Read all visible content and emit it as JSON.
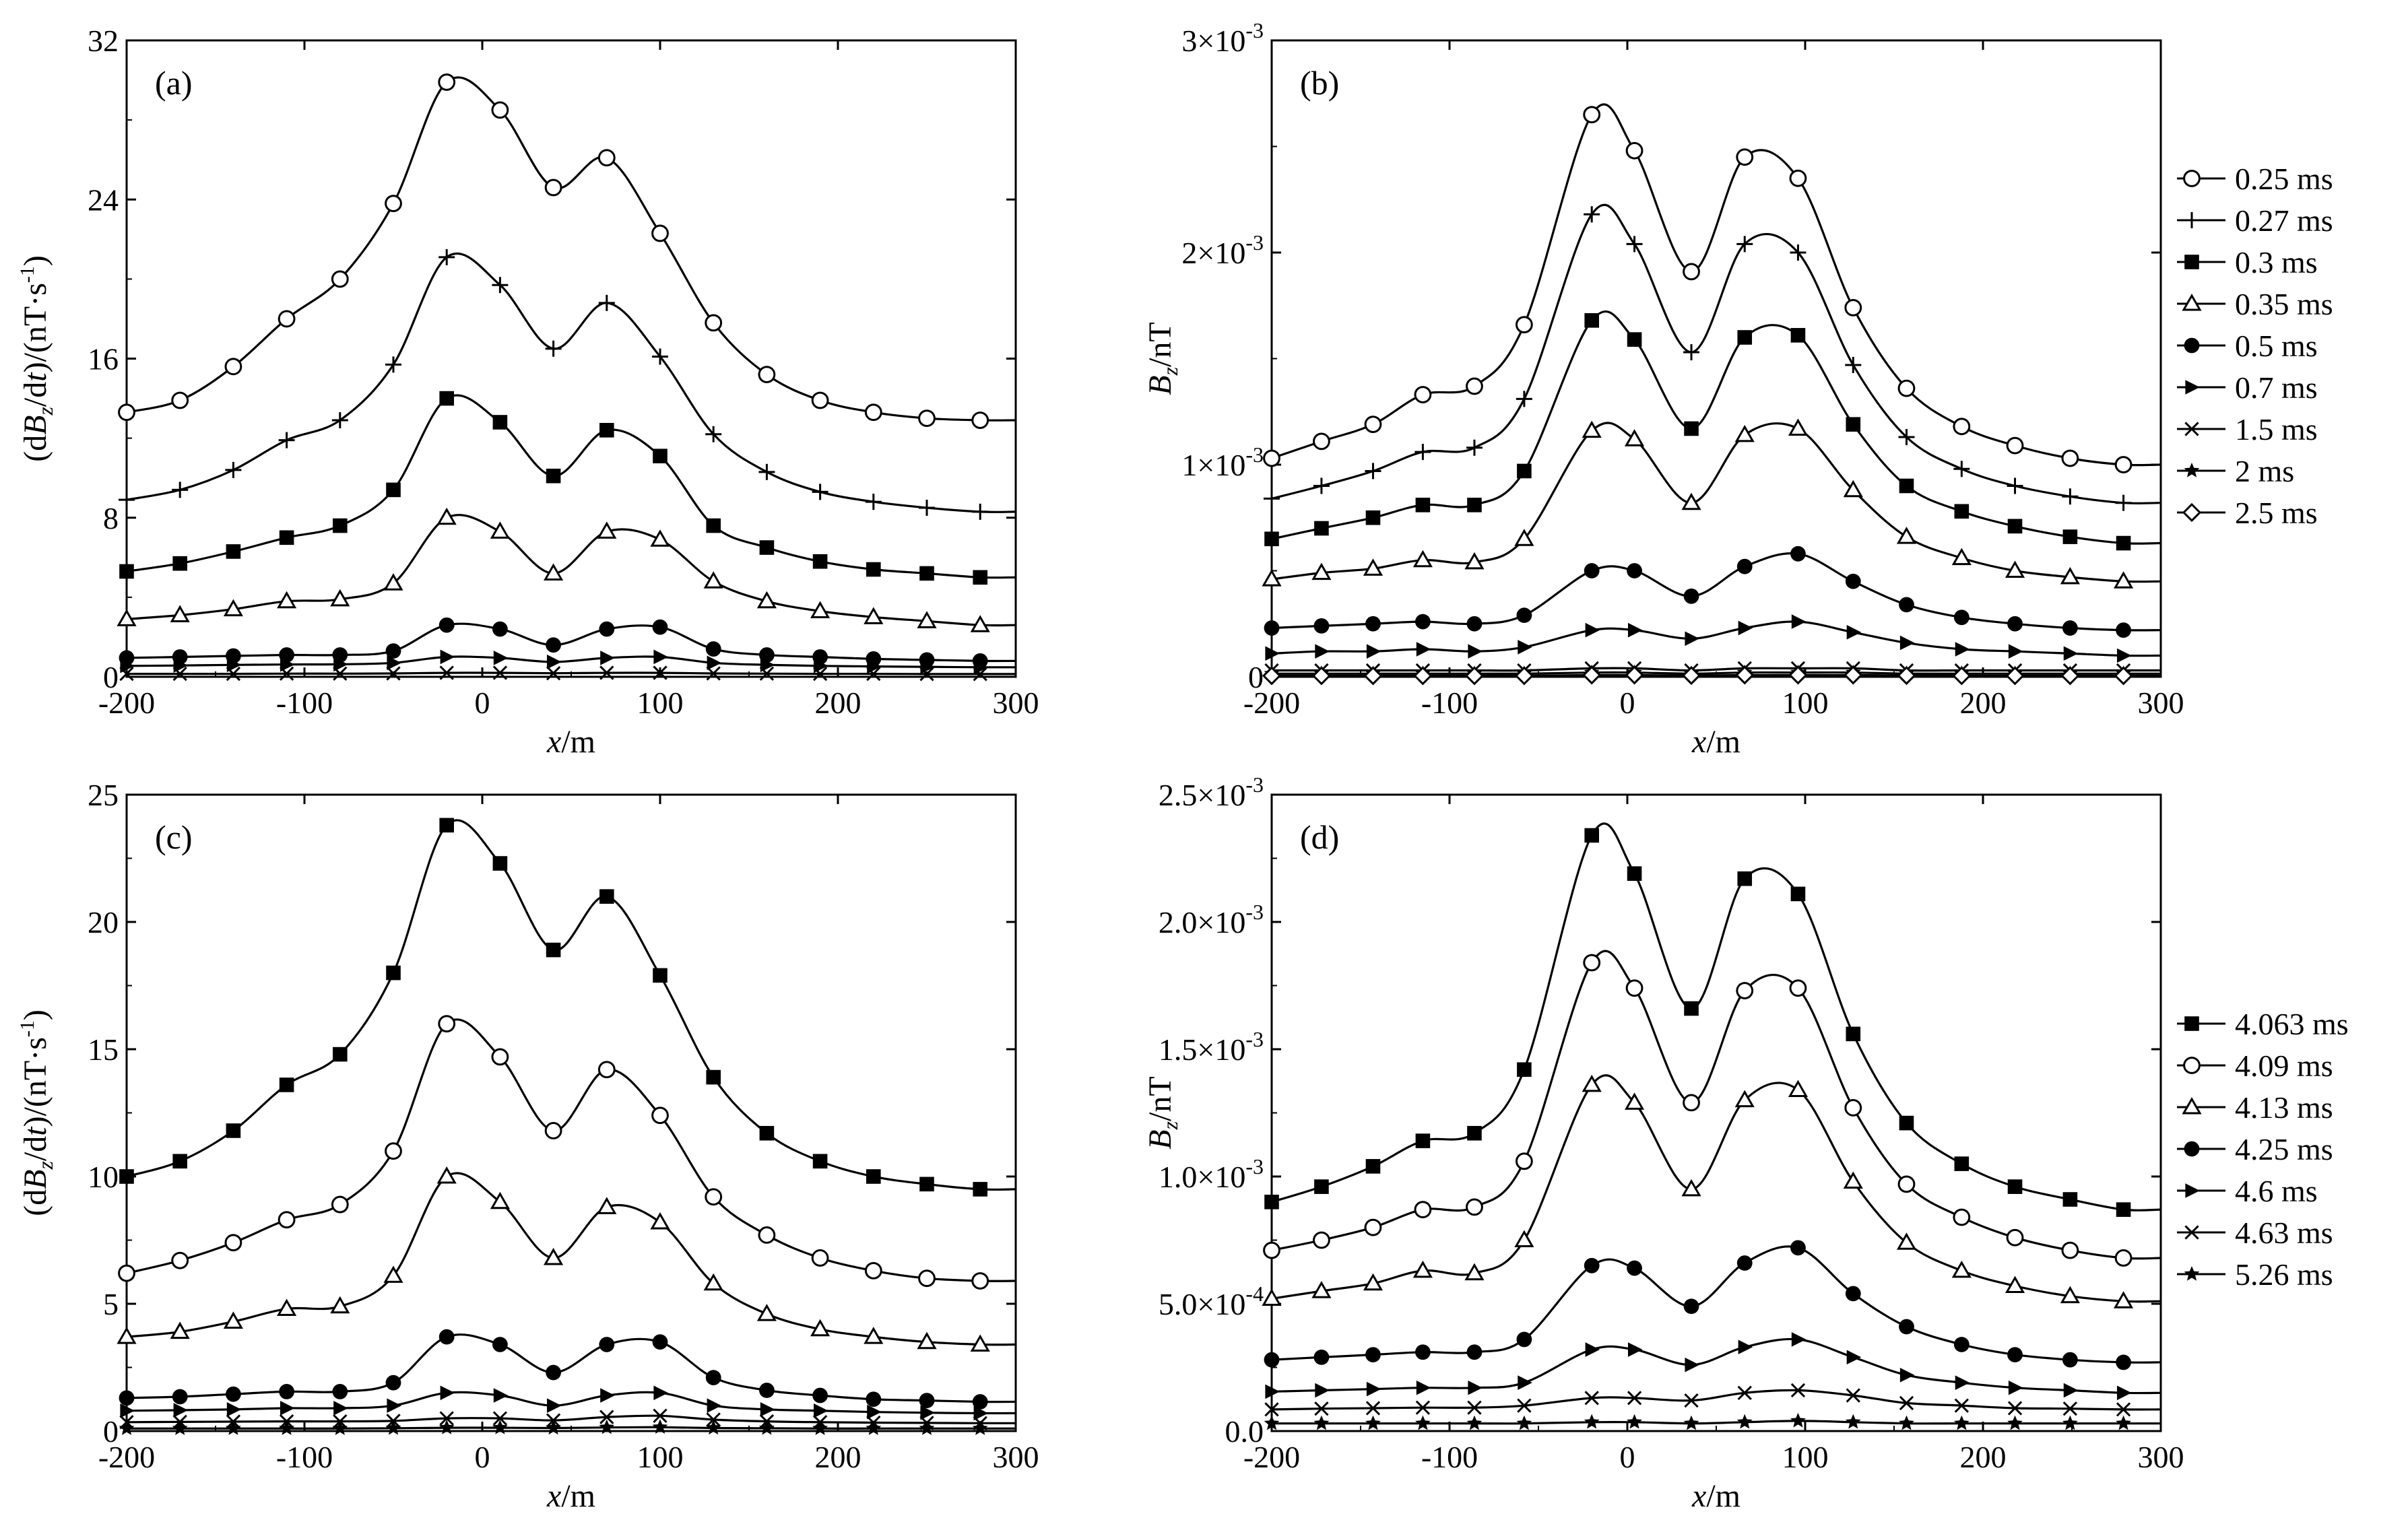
{
  "figure": {
    "panels": [
      {
        "id": "a",
        "label": "(a)",
        "ylabel_html": "(d<tspan font-style='italic'>B</tspan><tspan font-size='32' dy='10'>z</tspan><tspan dy='-10'>/d</tspan><tspan font-style='italic'>t</tspan>)/(nT·s<tspan font-size='30' dy='-18'>-1</tspan><tspan dy='18'>)</tspan>",
        "ylabel_text": "(dBz/dt)/(nT·s-1)",
        "xlabel": "x/m"
      },
      {
        "id": "b",
        "label": "(b)",
        "ylabel_text": "Bz/nT",
        "xlabel": "x/m"
      },
      {
        "id": "c",
        "label": "(c)",
        "ylabel_text": "(dBz/dt)/(nT·s-1)",
        "xlabel": "x/m"
      },
      {
        "id": "d",
        "label": "(d)",
        "ylabel_text": "Bz/nT",
        "xlabel": "x/m"
      }
    ]
  },
  "chart_data": [
    {
      "panel": "(a)",
      "type": "line",
      "xlabel": "x/m",
      "ylabel": "(dBz/dt)/(nT·s-1)",
      "xlim": [
        -200,
        300
      ],
      "ylim": [
        0,
        32
      ],
      "xticks": [
        "-200",
        "-100",
        "0",
        "100",
        "200",
        "300"
      ],
      "yticks": [
        {
          "v": 0,
          "t": "0"
        },
        {
          "v": 8,
          "t": "8"
        },
        {
          "v": 16,
          "t": "16"
        },
        {
          "v": 24,
          "t": "24"
        },
        {
          "v": 32,
          "t": "32"
        }
      ],
      "x": [
        -200,
        -170,
        -140,
        -110,
        -80,
        -50,
        -20,
        10,
        40,
        70,
        100,
        130,
        160,
        190,
        220,
        250,
        280
      ],
      "series": [
        {
          "name": "0.25 ms",
          "marker": "circle-open",
          "values": [
            13.3,
            13.9,
            15.6,
            18.0,
            20.0,
            23.8,
            29.9,
            28.5,
            24.6,
            26.1,
            22.3,
            17.8,
            15.2,
            13.9,
            13.3,
            13.0,
            12.9
          ]
        },
        {
          "name": "0.27 ms",
          "marker": "plus",
          "values": [
            8.9,
            9.4,
            10.4,
            11.9,
            12.9,
            15.7,
            21.1,
            19.7,
            16.5,
            18.8,
            16.1,
            12.2,
            10.3,
            9.3,
            8.8,
            8.5,
            8.3
          ]
        },
        {
          "name": "0.3 ms",
          "marker": "square-filled",
          "values": [
            5.3,
            5.7,
            6.3,
            7.0,
            7.6,
            9.4,
            14.0,
            12.8,
            10.1,
            12.4,
            11.1,
            7.6,
            6.5,
            5.8,
            5.4,
            5.2,
            5.0
          ]
        },
        {
          "name": "0.35 ms",
          "marker": "triangle-open",
          "values": [
            2.9,
            3.1,
            3.4,
            3.8,
            3.9,
            4.7,
            8.0,
            7.3,
            5.2,
            7.3,
            6.9,
            4.8,
            3.8,
            3.3,
            3.0,
            2.8,
            2.6
          ]
        },
        {
          "name": "0.5 ms",
          "marker": "circle-filled",
          "values": [
            0.95,
            1.0,
            1.05,
            1.1,
            1.1,
            1.3,
            2.6,
            2.4,
            1.6,
            2.4,
            2.5,
            1.4,
            1.1,
            1.0,
            0.9,
            0.85,
            0.8
          ]
        },
        {
          "name": "0.7 ms",
          "marker": "triangle-right",
          "values": [
            0.55,
            0.57,
            0.6,
            0.62,
            0.63,
            0.7,
            1.0,
            0.95,
            0.75,
            0.95,
            1.0,
            0.7,
            0.6,
            0.55,
            0.52,
            0.5,
            0.48
          ]
        },
        {
          "name": "1.5 ms",
          "marker": "x",
          "values": [
            0.15,
            0.15,
            0.15,
            0.16,
            0.16,
            0.17,
            0.2,
            0.2,
            0.18,
            0.2,
            0.2,
            0.17,
            0.16,
            0.15,
            0.15,
            0.14,
            0.14
          ]
        }
      ]
    },
    {
      "panel": "(b)",
      "type": "line",
      "xlabel": "x/m",
      "ylabel": "Bz/nT",
      "xlim": [
        -200,
        300
      ],
      "ylim": [
        0,
        0.003
      ],
      "xticks": [
        "-200",
        "-100",
        "0",
        "100",
        "200",
        "300"
      ],
      "yticks": [
        {
          "v": 0,
          "t": "0"
        },
        {
          "v": 0.001,
          "t": "1×10-3"
        },
        {
          "v": 0.002,
          "t": "2×10-3"
        },
        {
          "v": 0.003,
          "t": "3×10-3"
        }
      ],
      "x": [
        -200,
        -172,
        -143,
        -115,
        -86,
        -58,
        -20,
        4,
        36,
        66,
        96,
        127,
        157,
        188,
        218,
        249,
        279
      ],
      "series": [
        {
          "name": "0.25 ms",
          "marker": "circle-open",
          "values": [
            0.00103,
            0.00111,
            0.00119,
            0.00133,
            0.00137,
            0.00166,
            0.00265,
            0.00248,
            0.00191,
            0.00245,
            0.00235,
            0.00174,
            0.00136,
            0.00118,
            0.00109,
            0.00103,
            0.001
          ]
        },
        {
          "name": "0.27 ms",
          "marker": "plus",
          "values": [
            0.00084,
            0.0009,
            0.00097,
            0.00106,
            0.00108,
            0.00131,
            0.00218,
            0.00204,
            0.00153,
            0.00204,
            0.002,
            0.00147,
            0.00113,
            0.00098,
            0.0009,
            0.00085,
            0.00082
          ]
        },
        {
          "name": "0.3 ms",
          "marker": "square-filled",
          "values": [
            0.00065,
            0.0007,
            0.00075,
            0.00081,
            0.00081,
            0.00097,
            0.00168,
            0.00159,
            0.00117,
            0.0016,
            0.00161,
            0.00119,
            0.0009,
            0.00078,
            0.00071,
            0.00066,
            0.00063
          ]
        },
        {
          "name": "0.35 ms",
          "marker": "triangle-open",
          "values": [
            0.00046,
            0.00049,
            0.00051,
            0.00055,
            0.00054,
            0.00065,
            0.00116,
            0.00112,
            0.00082,
            0.00114,
            0.00117,
            0.00088,
            0.00066,
            0.00056,
            0.0005,
            0.00047,
            0.00045
          ]
        },
        {
          "name": "0.5 ms",
          "marker": "circle-filled",
          "values": [
            0.00023,
            0.00024,
            0.00025,
            0.00026,
            0.00025,
            0.00029,
            0.0005,
            0.0005,
            0.00038,
            0.00052,
            0.00058,
            0.00045,
            0.00034,
            0.00028,
            0.00025,
            0.00023,
            0.00022
          ]
        },
        {
          "name": "0.7 ms",
          "marker": "triangle-right",
          "values": [
            0.00011,
            0.00012,
            0.00012,
            0.00013,
            0.00012,
            0.00014,
            0.00022,
            0.00022,
            0.00018,
            0.00023,
            0.00026,
            0.00021,
            0.00016,
            0.00013,
            0.00012,
            0.00011,
            0.0001
          ]
        },
        {
          "name": "1.5 ms",
          "marker": "x",
          "values": [
            3e-05,
            3e-05,
            3e-05,
            3e-05,
            3e-05,
            3e-05,
            4e-05,
            4e-05,
            3e-05,
            4e-05,
            4e-05,
            4e-05,
            3e-05,
            3e-05,
            3e-05,
            3e-05,
            3e-05
          ]
        },
        {
          "name": "2 ms",
          "marker": "star",
          "values": [
            1.5e-05,
            1.5e-05,
            1.5e-05,
            1.5e-05,
            1.5e-05,
            1.5e-05,
            2e-05,
            2e-05,
            1.5e-05,
            2e-05,
            2e-05,
            2e-05,
            1.5e-05,
            1.5e-05,
            1.5e-05,
            1.5e-05,
            1.5e-05
          ]
        },
        {
          "name": "2.5 ms",
          "marker": "diamond-open",
          "values": [
            5e-06,
            5e-06,
            5e-06,
            5e-06,
            5e-06,
            5e-06,
            8e-06,
            8e-06,
            6e-06,
            8e-06,
            8e-06,
            8e-06,
            6e-06,
            5e-06,
            5e-06,
            5e-06,
            5e-06
          ]
        }
      ],
      "legend": [
        "0.25 ms",
        "0.27 ms",
        "0.3 ms",
        "0.35 ms",
        "0.5 ms",
        "0.7 ms",
        "1.5 ms",
        "2 ms",
        "2.5 ms"
      ]
    },
    {
      "panel": "(c)",
      "type": "line",
      "xlabel": "x/m",
      "ylabel": "(dBz/dt)/(nT·s-1)",
      "xlim": [
        -200,
        300
      ],
      "ylim": [
        0,
        25
      ],
      "xticks": [
        "-200",
        "-100",
        "0",
        "100",
        "200",
        "300"
      ],
      "yticks": [
        {
          "v": 0,
          "t": "0"
        },
        {
          "v": 5,
          "t": "5"
        },
        {
          "v": 10,
          "t": "10"
        },
        {
          "v": 15,
          "t": "15"
        },
        {
          "v": 20,
          "t": "20"
        },
        {
          "v": 25,
          "t": "25"
        }
      ],
      "x": [
        -200,
        -170,
        -140,
        -110,
        -80,
        -50,
        -20,
        10,
        40,
        70,
        100,
        130,
        160,
        190,
        220,
        250,
        280
      ],
      "series": [
        {
          "name": "4.063 ms",
          "marker": "square-filled",
          "values": [
            10.0,
            10.6,
            11.8,
            13.6,
            14.8,
            18.0,
            23.8,
            22.3,
            18.9,
            21.0,
            17.9,
            13.9,
            11.7,
            10.6,
            10.0,
            9.7,
            9.5
          ]
        },
        {
          "name": "4.09 ms",
          "marker": "circle-open",
          "values": [
            6.2,
            6.7,
            7.4,
            8.3,
            8.9,
            11.0,
            16.0,
            14.7,
            11.8,
            14.2,
            12.4,
            9.2,
            7.7,
            6.8,
            6.3,
            6.0,
            5.9
          ]
        },
        {
          "name": "4.13 ms",
          "marker": "triangle-open",
          "values": [
            3.7,
            3.9,
            4.3,
            4.8,
            4.9,
            6.1,
            10.0,
            9.0,
            6.8,
            8.8,
            8.2,
            5.8,
            4.6,
            4.0,
            3.7,
            3.5,
            3.4
          ]
        },
        {
          "name": "4.25 ms",
          "marker": "circle-filled",
          "values": [
            1.3,
            1.35,
            1.45,
            1.55,
            1.55,
            1.9,
            3.7,
            3.4,
            2.3,
            3.4,
            3.5,
            2.1,
            1.6,
            1.4,
            1.25,
            1.2,
            1.15
          ]
        },
        {
          "name": "4.6 ms",
          "marker": "triangle-right",
          "values": [
            0.8,
            0.82,
            0.85,
            0.9,
            0.9,
            1.0,
            1.5,
            1.4,
            1.0,
            1.4,
            1.5,
            1.0,
            0.85,
            0.8,
            0.75,
            0.72,
            0.7
          ]
        },
        {
          "name": "4.63 ms",
          "marker": "x",
          "values": [
            0.35,
            0.36,
            0.37,
            0.38,
            0.38,
            0.4,
            0.5,
            0.5,
            0.42,
            0.55,
            0.6,
            0.45,
            0.38,
            0.35,
            0.33,
            0.32,
            0.31
          ]
        },
        {
          "name": "5.26 ms",
          "marker": "star",
          "values": [
            0.1,
            0.1,
            0.1,
            0.1,
            0.1,
            0.11,
            0.13,
            0.13,
            0.12,
            0.14,
            0.15,
            0.12,
            0.11,
            0.1,
            0.1,
            0.1,
            0.1
          ]
        }
      ]
    },
    {
      "panel": "(d)",
      "type": "line",
      "xlabel": "x/m",
      "ylabel": "Bz/nT",
      "xlim": [
        -200,
        300
      ],
      "ylim": [
        0,
        0.0025
      ],
      "xticks": [
        "-200",
        "-100",
        "0",
        "100",
        "200",
        "300"
      ],
      "yticks": [
        {
          "v": 0,
          "t": "0.0"
        },
        {
          "v": 0.0005,
          "t": "5.0×10-4"
        },
        {
          "v": 0.001,
          "t": "1.0×10-3"
        },
        {
          "v": 0.0015,
          "t": "1.5×10-3"
        },
        {
          "v": 0.002,
          "t": "2.0×10-3"
        },
        {
          "v": 0.0025,
          "t": "2.5×10-3"
        }
      ],
      "x": [
        -200,
        -172,
        -143,
        -115,
        -86,
        -58,
        -20,
        4,
        36,
        66,
        96,
        127,
        157,
        188,
        218,
        249,
        279
      ],
      "series": [
        {
          "name": "4.063 ms",
          "marker": "square-filled",
          "values": [
            0.0009,
            0.00096,
            0.00104,
            0.00114,
            0.00117,
            0.00142,
            0.00234,
            0.00219,
            0.00166,
            0.00217,
            0.00211,
            0.00156,
            0.00121,
            0.00105,
            0.00096,
            0.00091,
            0.00087
          ]
        },
        {
          "name": "4.09 ms",
          "marker": "circle-open",
          "values": [
            0.00071,
            0.00075,
            0.0008,
            0.00087,
            0.00088,
            0.00106,
            0.00184,
            0.00174,
            0.00129,
            0.00173,
            0.00174,
            0.00127,
            0.00097,
            0.00084,
            0.00076,
            0.00071,
            0.00068
          ]
        },
        {
          "name": "4.13 ms",
          "marker": "triangle-open",
          "values": [
            0.00052,
            0.00055,
            0.00058,
            0.00063,
            0.00062,
            0.00075,
            0.00136,
            0.00129,
            0.00095,
            0.0013,
            0.00134,
            0.00098,
            0.00074,
            0.00063,
            0.00057,
            0.00053,
            0.00051
          ]
        },
        {
          "name": "4.25 ms",
          "marker": "circle-filled",
          "values": [
            0.00028,
            0.00029,
            0.0003,
            0.00031,
            0.00031,
            0.00036,
            0.00065,
            0.00064,
            0.00049,
            0.00066,
            0.00072,
            0.00054,
            0.00041,
            0.00034,
            0.0003,
            0.00028,
            0.00027
          ]
        },
        {
          "name": "4.6 ms",
          "marker": "triangle-right",
          "values": [
            0.000155,
            0.00016,
            0.000165,
            0.00017,
            0.00017,
            0.00019,
            0.00032,
            0.00032,
            0.00026,
            0.00033,
            0.00036,
            0.00029,
            0.00022,
            0.00019,
            0.00017,
            0.00016,
            0.00015
          ]
        },
        {
          "name": "4.63 ms",
          "marker": "x",
          "values": [
            8.5e-05,
            8.8e-05,
            9e-05,
            9.2e-05,
            9.2e-05,
            0.0001,
            0.00013,
            0.00013,
            0.00012,
            0.00015,
            0.00016,
            0.00014,
            0.00011,
            0.0001,
            9e-05,
            8.8e-05,
            8.5e-05
          ]
        },
        {
          "name": "5.26 ms",
          "marker": "star",
          "values": [
            3e-05,
            3e-05,
            3e-05,
            3e-05,
            3e-05,
            3e-05,
            3.5e-05,
            3.5e-05,
            3e-05,
            3.5e-05,
            4e-05,
            3.5e-05,
            3e-05,
            3e-05,
            3e-05,
            3e-05,
            3e-05
          ]
        }
      ],
      "legend": [
        "4.063 ms",
        "4.09 ms",
        "4.13 ms",
        "4.25 ms",
        "4.6 ms",
        "4.63 ms",
        "5.26 ms"
      ]
    }
  ]
}
